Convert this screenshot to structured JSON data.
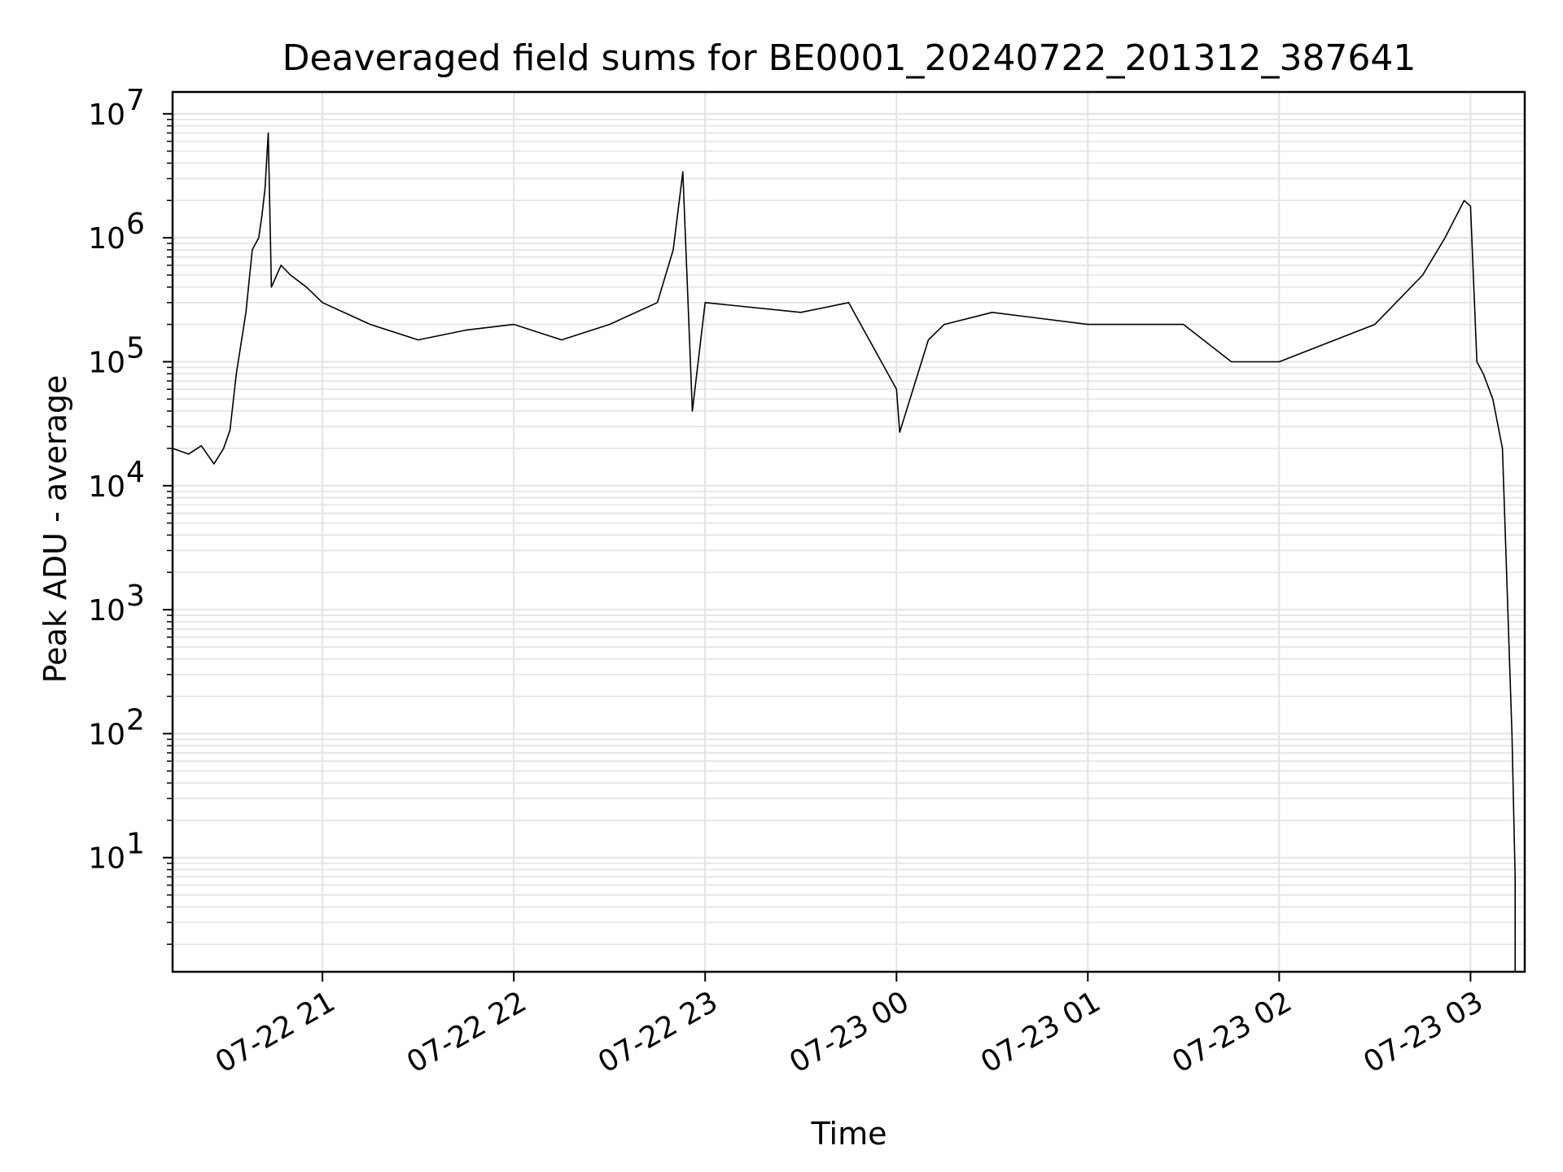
{
  "chart_data": {
    "type": "line",
    "title": "Deaveraged field sums for BE0001_20240722_201312_387641",
    "xlabel": "Time",
    "ylabel": "Peak ADU - average",
    "yscale": "log",
    "ylim": [
      1.2,
      15000000
    ],
    "xlim": [
      "2024-07-22 20:13",
      "2024-07-23 03:17"
    ],
    "grid": true,
    "line_color": "#000000",
    "grid_color": "#e3e3e3",
    "x_ticks": [
      {
        "t": "2024-07-22 21:00",
        "label": "07-22 21"
      },
      {
        "t": "2024-07-22 22:00",
        "label": "07-22 22"
      },
      {
        "t": "2024-07-22 23:00",
        "label": "07-22 23"
      },
      {
        "t": "2024-07-23 00:00",
        "label": "07-23 00"
      },
      {
        "t": "2024-07-23 01:00",
        "label": "07-23 01"
      },
      {
        "t": "2024-07-23 02:00",
        "label": "07-23 02"
      },
      {
        "t": "2024-07-23 03:00",
        "label": "07-23 03"
      }
    ],
    "y_ticks": [
      {
        "value": 10,
        "base": "10",
        "exp": "1"
      },
      {
        "value": 100,
        "base": "10",
        "exp": "2"
      },
      {
        "value": 1000,
        "base": "10",
        "exp": "3"
      },
      {
        "value": 10000,
        "base": "10",
        "exp": "4"
      },
      {
        "value": 100000,
        "base": "10",
        "exp": "5"
      },
      {
        "value": 1000000,
        "base": "10",
        "exp": "6"
      },
      {
        "value": 10000000,
        "base": "10",
        "exp": "7"
      }
    ],
    "series": [
      {
        "x": [
          "2024-07-22 20:13",
          "2024-07-22 20:18",
          "2024-07-22 20:22",
          "2024-07-22 20:26",
          "2024-07-22 20:29",
          "2024-07-22 20:31",
          "2024-07-22 20:33",
          "2024-07-22 20:36",
          "2024-07-22 20:38",
          "2024-07-22 20:40",
          "2024-07-22 20:41",
          "2024-07-22 20:42",
          "2024-07-22 20:43",
          "2024-07-22 20:44",
          "2024-07-22 20:47",
          "2024-07-22 20:50",
          "2024-07-22 20:55",
          "2024-07-22 21:00",
          "2024-07-22 21:15",
          "2024-07-22 21:30",
          "2024-07-22 21:45",
          "2024-07-22 22:00",
          "2024-07-22 22:15",
          "2024-07-22 22:30",
          "2024-07-22 22:45",
          "2024-07-22 22:50",
          "2024-07-22 22:53",
          "2024-07-22 22:56",
          "2024-07-22 23:00",
          "2024-07-22 23:30",
          "2024-07-22 23:45",
          "2024-07-23 00:00",
          "2024-07-23 00:01",
          "2024-07-23 00:10",
          "2024-07-23 00:15",
          "2024-07-23 00:30",
          "2024-07-23 01:00",
          "2024-07-23 01:30",
          "2024-07-23 01:45",
          "2024-07-23 02:00",
          "2024-07-23 02:30",
          "2024-07-23 02:45",
          "2024-07-23 02:52",
          "2024-07-23 02:58",
          "2024-07-23 03:00",
          "2024-07-23 03:02",
          "2024-07-23 03:04",
          "2024-07-23 03:07",
          "2024-07-23 03:10",
          "2024-07-23 03:13",
          "2024-07-23 03:14",
          "2024-07-23 03:14",
          "2024-07-23 03:15"
        ],
        "y": [
          20000,
          18000,
          21000,
          15000,
          20000,
          28000,
          80000,
          250000,
          800000,
          1000000,
          1500000,
          2500000,
          7000000,
          400000,
          600000,
          500000,
          400000,
          300000,
          200000,
          150000,
          180000,
          200000,
          150000,
          200000,
          300000,
          800000,
          3400000,
          40000,
          300000,
          250000,
          300000,
          60000,
          27000,
          150000,
          200000,
          250000,
          200000,
          200000,
          100000,
          100000,
          200000,
          500000,
          1000000,
          2000000,
          1800000,
          100000,
          80000,
          50000,
          20000,
          100,
          7,
          1.2,
          1.2
        ]
      }
    ]
  }
}
